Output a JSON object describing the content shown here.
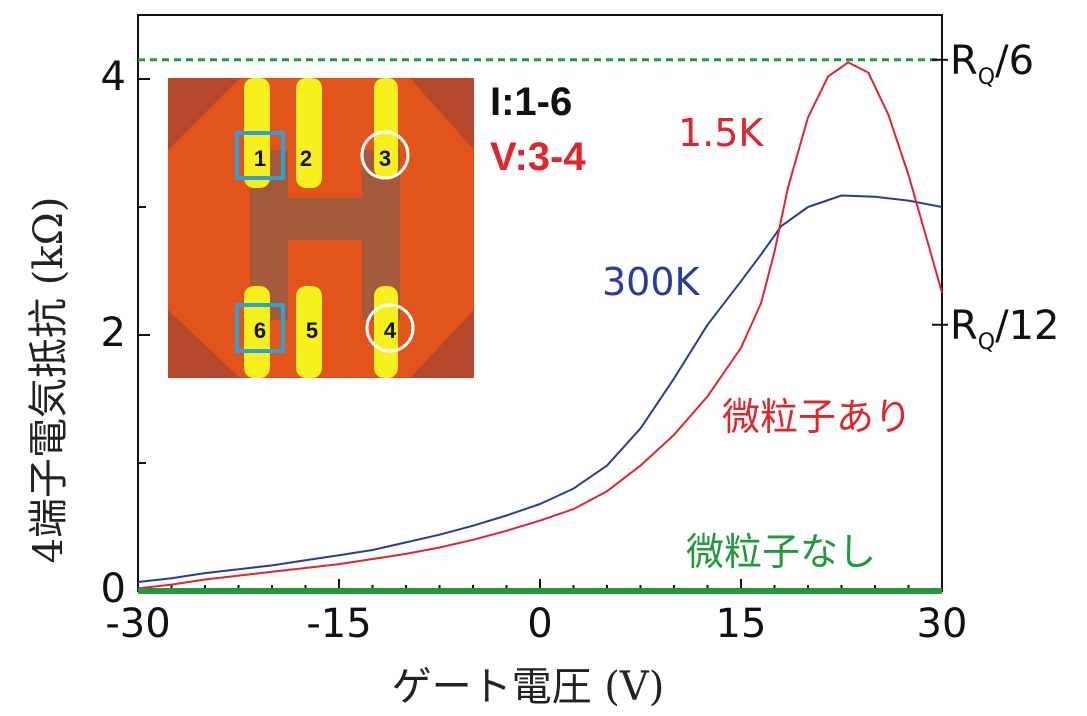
{
  "chart_data": {
    "type": "line",
    "xlabel": "ゲート電圧 (V)",
    "ylabel": "4端子電気抵抗 (kΩ)",
    "xlim": [
      -30,
      30
    ],
    "ylim": [
      0,
      4.5
    ],
    "x_ticks": [
      "-30",
      "-15",
      "0",
      "15",
      "30"
    ],
    "x_tick_values": [
      -30,
      -15,
      0,
      15,
      30
    ],
    "y_ticks": [
      "0",
      "2",
      "4"
    ],
    "y_tick_values": [
      0,
      2,
      4
    ],
    "y_minor_ticks": [
      1,
      3
    ],
    "grid": false,
    "right_axis_labels": [
      {
        "main": "R",
        "sub": "Q",
        "tail": "/6",
        "y": 4.15
      },
      {
        "main": "R",
        "sub": "Q",
        "tail": "/12",
        "y": 2.08
      }
    ],
    "series": [
      {
        "name": "300K",
        "color": "#2b3a9e",
        "x": [
          -30,
          -27.5,
          -25,
          -22.5,
          -20,
          -17.5,
          -15,
          -12.5,
          -10,
          -7.5,
          -5,
          -2.5,
          0,
          2.5,
          5,
          7.5,
          10,
          12.5,
          15,
          16.5,
          18,
          20,
          22.5,
          25,
          27.5,
          30
        ],
        "y": [
          0.07,
          0.1,
          0.14,
          0.17,
          0.2,
          0.24,
          0.28,
          0.32,
          0.38,
          0.44,
          0.51,
          0.59,
          0.68,
          0.8,
          0.98,
          1.27,
          1.66,
          2.08,
          2.42,
          2.63,
          2.85,
          3.0,
          3.09,
          3.08,
          3.05,
          3.0
        ]
      },
      {
        "name": "1.5K",
        "color": "#e0262c",
        "x": [
          -30,
          -27.5,
          -25,
          -22.5,
          -20,
          -17.5,
          -15,
          -12.5,
          -10,
          -7.5,
          -5,
          -2.5,
          0,
          2.5,
          5,
          7.5,
          10,
          12.5,
          15,
          16.5,
          17.5,
          18.5,
          20,
          21.5,
          23,
          24.5,
          26,
          27.5,
          29,
          30
        ],
        "y": [
          0.02,
          0.05,
          0.09,
          0.12,
          0.15,
          0.18,
          0.21,
          0.25,
          0.29,
          0.34,
          0.4,
          0.47,
          0.55,
          0.64,
          0.78,
          0.98,
          1.22,
          1.52,
          1.9,
          2.25,
          2.65,
          3.15,
          3.7,
          4.02,
          4.13,
          4.05,
          3.72,
          3.25,
          2.7,
          2.33
        ]
      },
      {
        "name": "微粒子なし",
        "color": "#1f9a3a",
        "x": [
          -30,
          30
        ],
        "y": [
          0.0,
          0.0
        ]
      }
    ],
    "reference_line": {
      "y": 4.15,
      "color": "#1f9a3a",
      "style": "dashed"
    },
    "annotations": {
      "label_300k": "300K",
      "label_15k": "1.5K",
      "with_particles": "微粒子あり",
      "without_particles": "微粒子なし"
    },
    "inset": {
      "legend_current": "I:1-6",
      "legend_voltage": "V:3-4",
      "electrode_labels": [
        "1",
        "2",
        "3",
        "6",
        "5",
        "4"
      ]
    }
  }
}
